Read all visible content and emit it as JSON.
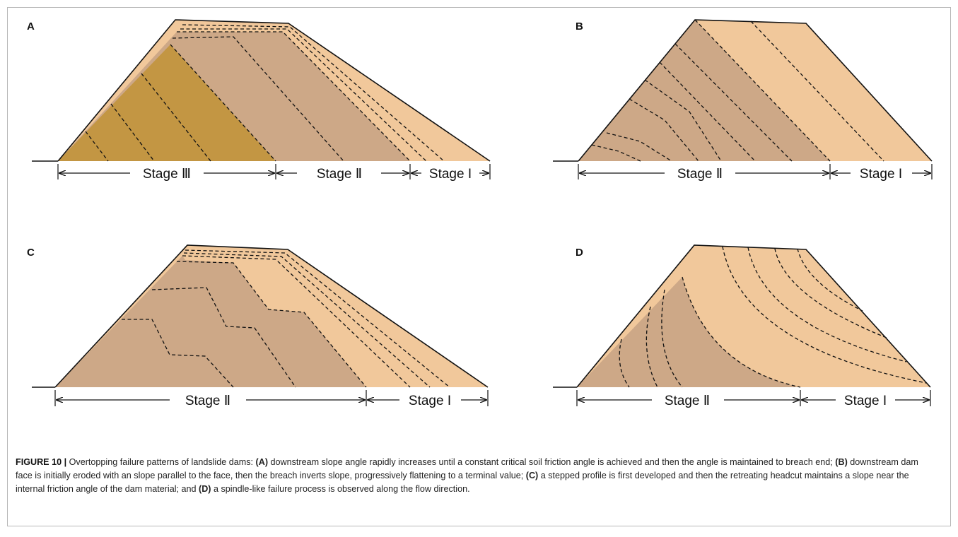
{
  "colors": {
    "light": "#f1c89b",
    "medium": "#cda887",
    "dark": "#c39643",
    "line": "#111111",
    "frame": "#b7b7b7"
  },
  "panels": [
    {
      "letter": "A",
      "stages": [
        "Stage Ⅲ",
        "Stage Ⅱ",
        "Stage I"
      ]
    },
    {
      "letter": "B",
      "stages": [
        "Stage Ⅱ",
        "Stage I"
      ]
    },
    {
      "letter": "C",
      "stages": [
        "Stage Ⅱ",
        "Stage I"
      ]
    },
    {
      "letter": "D",
      "stages": [
        "Stage Ⅱ",
        "Stage I"
      ]
    }
  ],
  "caption": {
    "figure_label": "FIGURE 10 |",
    "intro": " Overtopping failure patterns of landslide dams: ",
    "items": [
      {
        "tag": "(A)",
        "text": " downstream slope angle rapidly increases until a constant critical soil friction angle is achieved and then the angle is maintained to breach end; "
      },
      {
        "tag": "(B)",
        "text": " downstream dam face is initially eroded with an slope parallel to the face, then the breach inverts slope, progressively flattening to a terminal value; "
      },
      {
        "tag": "(C)",
        "text": " a stepped profile is first developed and then the retreating headcut maintains a slope near the internal friction angle of the dam material; and "
      },
      {
        "tag": "(D)",
        "text": " a spindle-like failure process is observed along the flow direction."
      }
    ]
  }
}
